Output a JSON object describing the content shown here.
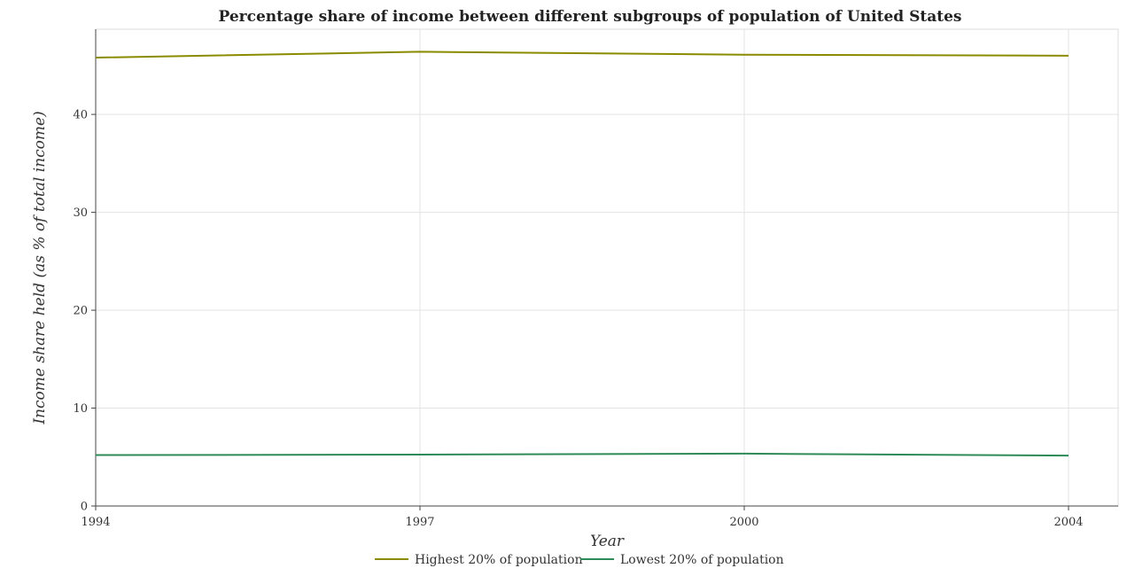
{
  "chart_data": {
    "type": "line",
    "title": "Percentage share of income between different subgroups of population of United States",
    "xlabel": "Year",
    "ylabel": "Income share held (as % of total income)",
    "categories": [
      "1994",
      "1997",
      "2000",
      "2004"
    ],
    "yticks": [
      "0",
      "10",
      "20",
      "30",
      "40"
    ],
    "ylim": [
      0,
      48.7
    ],
    "grid": true,
    "legend_position": "bottom-center",
    "series": [
      {
        "name": "Highest 20% of population",
        "color": "#8b8b00",
        "values": [
          45.8,
          46.4,
          46.1,
          46.0
        ]
      },
      {
        "name": "Lowest 20% of population",
        "color": "#2e8b57",
        "values": [
          5.2,
          5.25,
          5.35,
          5.15
        ]
      }
    ]
  }
}
